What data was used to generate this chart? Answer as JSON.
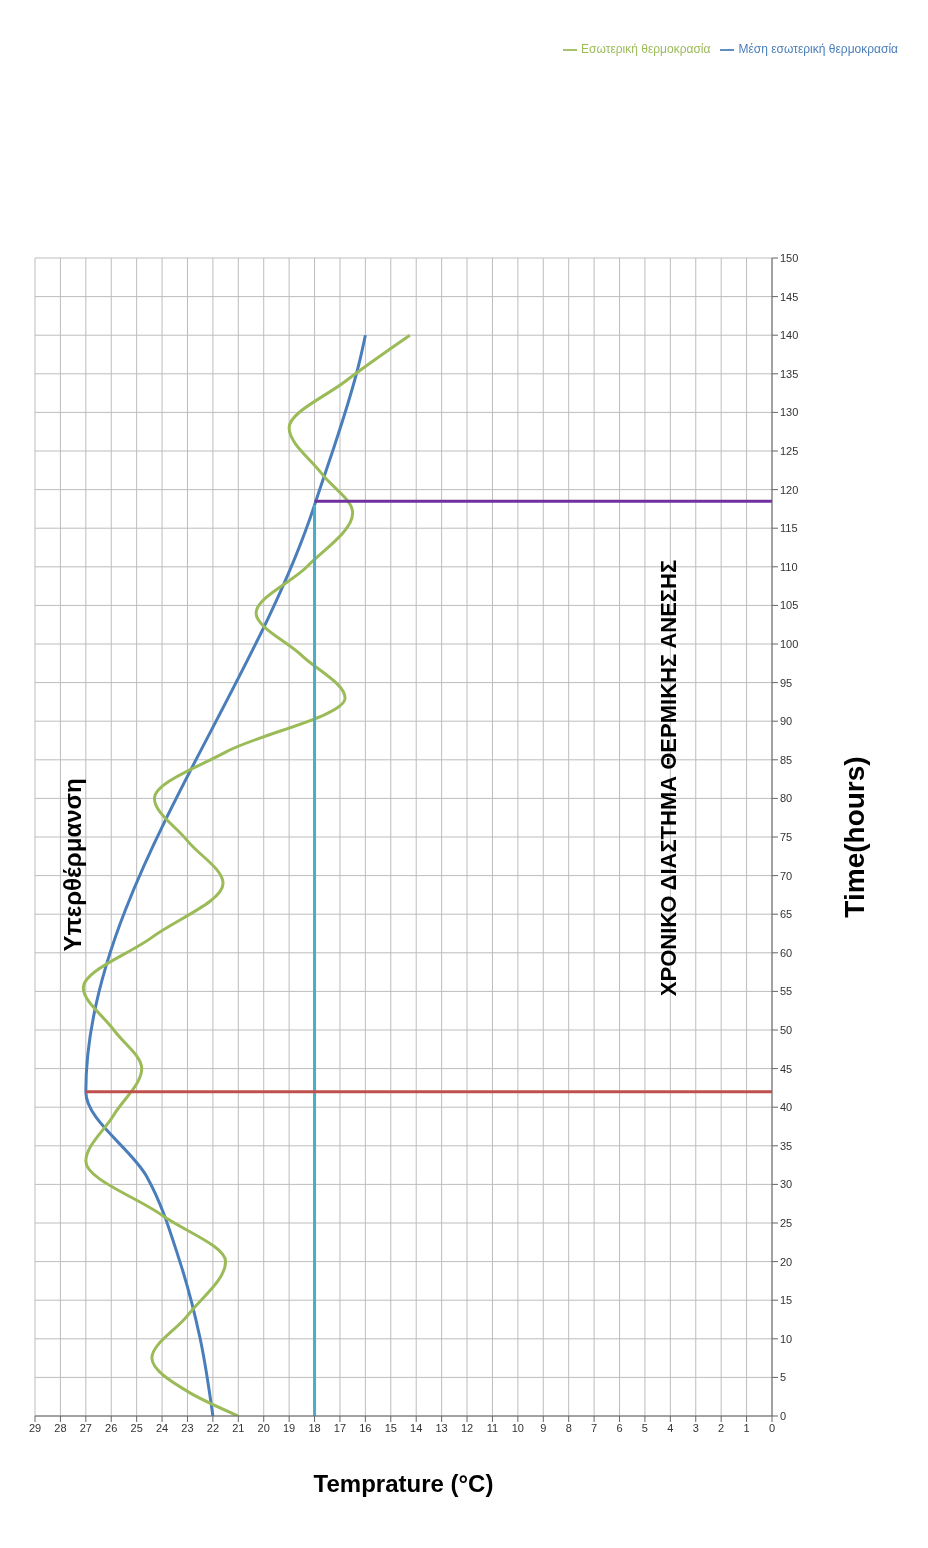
{
  "chart_data": {
    "type": "line",
    "xlabel": "Temprature (°C)",
    "ylabel": "Time(hours)",
    "annotations": [
      "Υπερθέρμανση",
      "ΧΡΟΝΙΚΟ ΔΙΑΣΤΗΜΑ ΘΕΡΜΙΚΗΣ ΑΝΕΣΗΣ"
    ],
    "series": [
      {
        "name": "Μέση εσωτερική θερμοκρασία",
        "color": "#4a7ebb",
        "x": [
          22,
          22.5,
          23.3,
          24.6,
          27,
          18,
          16.2,
          16
        ],
        "values": [
          0,
          10,
          20,
          31,
          42,
          118,
          137,
          140
        ]
      },
      {
        "name": "Εσωτερική θερμοκρασία",
        "color": "#9bbb59",
        "x": [
          21,
          22.9,
          24.4,
          23,
          21.5,
          24,
          27,
          25.9,
          24.8,
          25.9,
          27.1,
          24.4,
          21.6,
          23,
          24.3,
          21.5,
          16.8,
          18.5,
          20.3,
          18.3,
          16.5,
          17.7,
          19,
          16.8,
          14.25
        ],
        "values": [
          0,
          3,
          7.5,
          13,
          20,
          26,
          33,
          39,
          45,
          50,
          55.5,
          62,
          69,
          74.5,
          80,
          86,
          93,
          98.5,
          104,
          110,
          117,
          122,
          128,
          134,
          140
        ]
      },
      {
        "color": "#4bacc6",
        "x": [
          18,
          18
        ],
        "values": [
          0,
          118
        ]
      },
      {
        "color": "#c0504d",
        "x": [
          27,
          0
        ],
        "values": [
          42,
          42
        ]
      },
      {
        "color": "#7030a0",
        "x": [
          18,
          0
        ],
        "values": [
          118.5,
          118.5
        ]
      }
    ],
    "xlim": [
      29,
      0
    ],
    "xticks": [
      29,
      28,
      27,
      26,
      25,
      24,
      23,
      22,
      21,
      20,
      19,
      18,
      17,
      16,
      15,
      14,
      13,
      12,
      11,
      10,
      9,
      8,
      7,
      6,
      5,
      4,
      3,
      2,
      1,
      0
    ],
    "ylim": [
      0,
      150
    ],
    "yticks": [
      0,
      5,
      10,
      15,
      20,
      25,
      30,
      35,
      40,
      45,
      50,
      55,
      60,
      65,
      70,
      75,
      80,
      85,
      90,
      95,
      100,
      105,
      110,
      115,
      120,
      125,
      130,
      135,
      140,
      145,
      150
    ],
    "grid": true,
    "legend": "top right",
    "marker": "none",
    "line_style": "solid"
  }
}
